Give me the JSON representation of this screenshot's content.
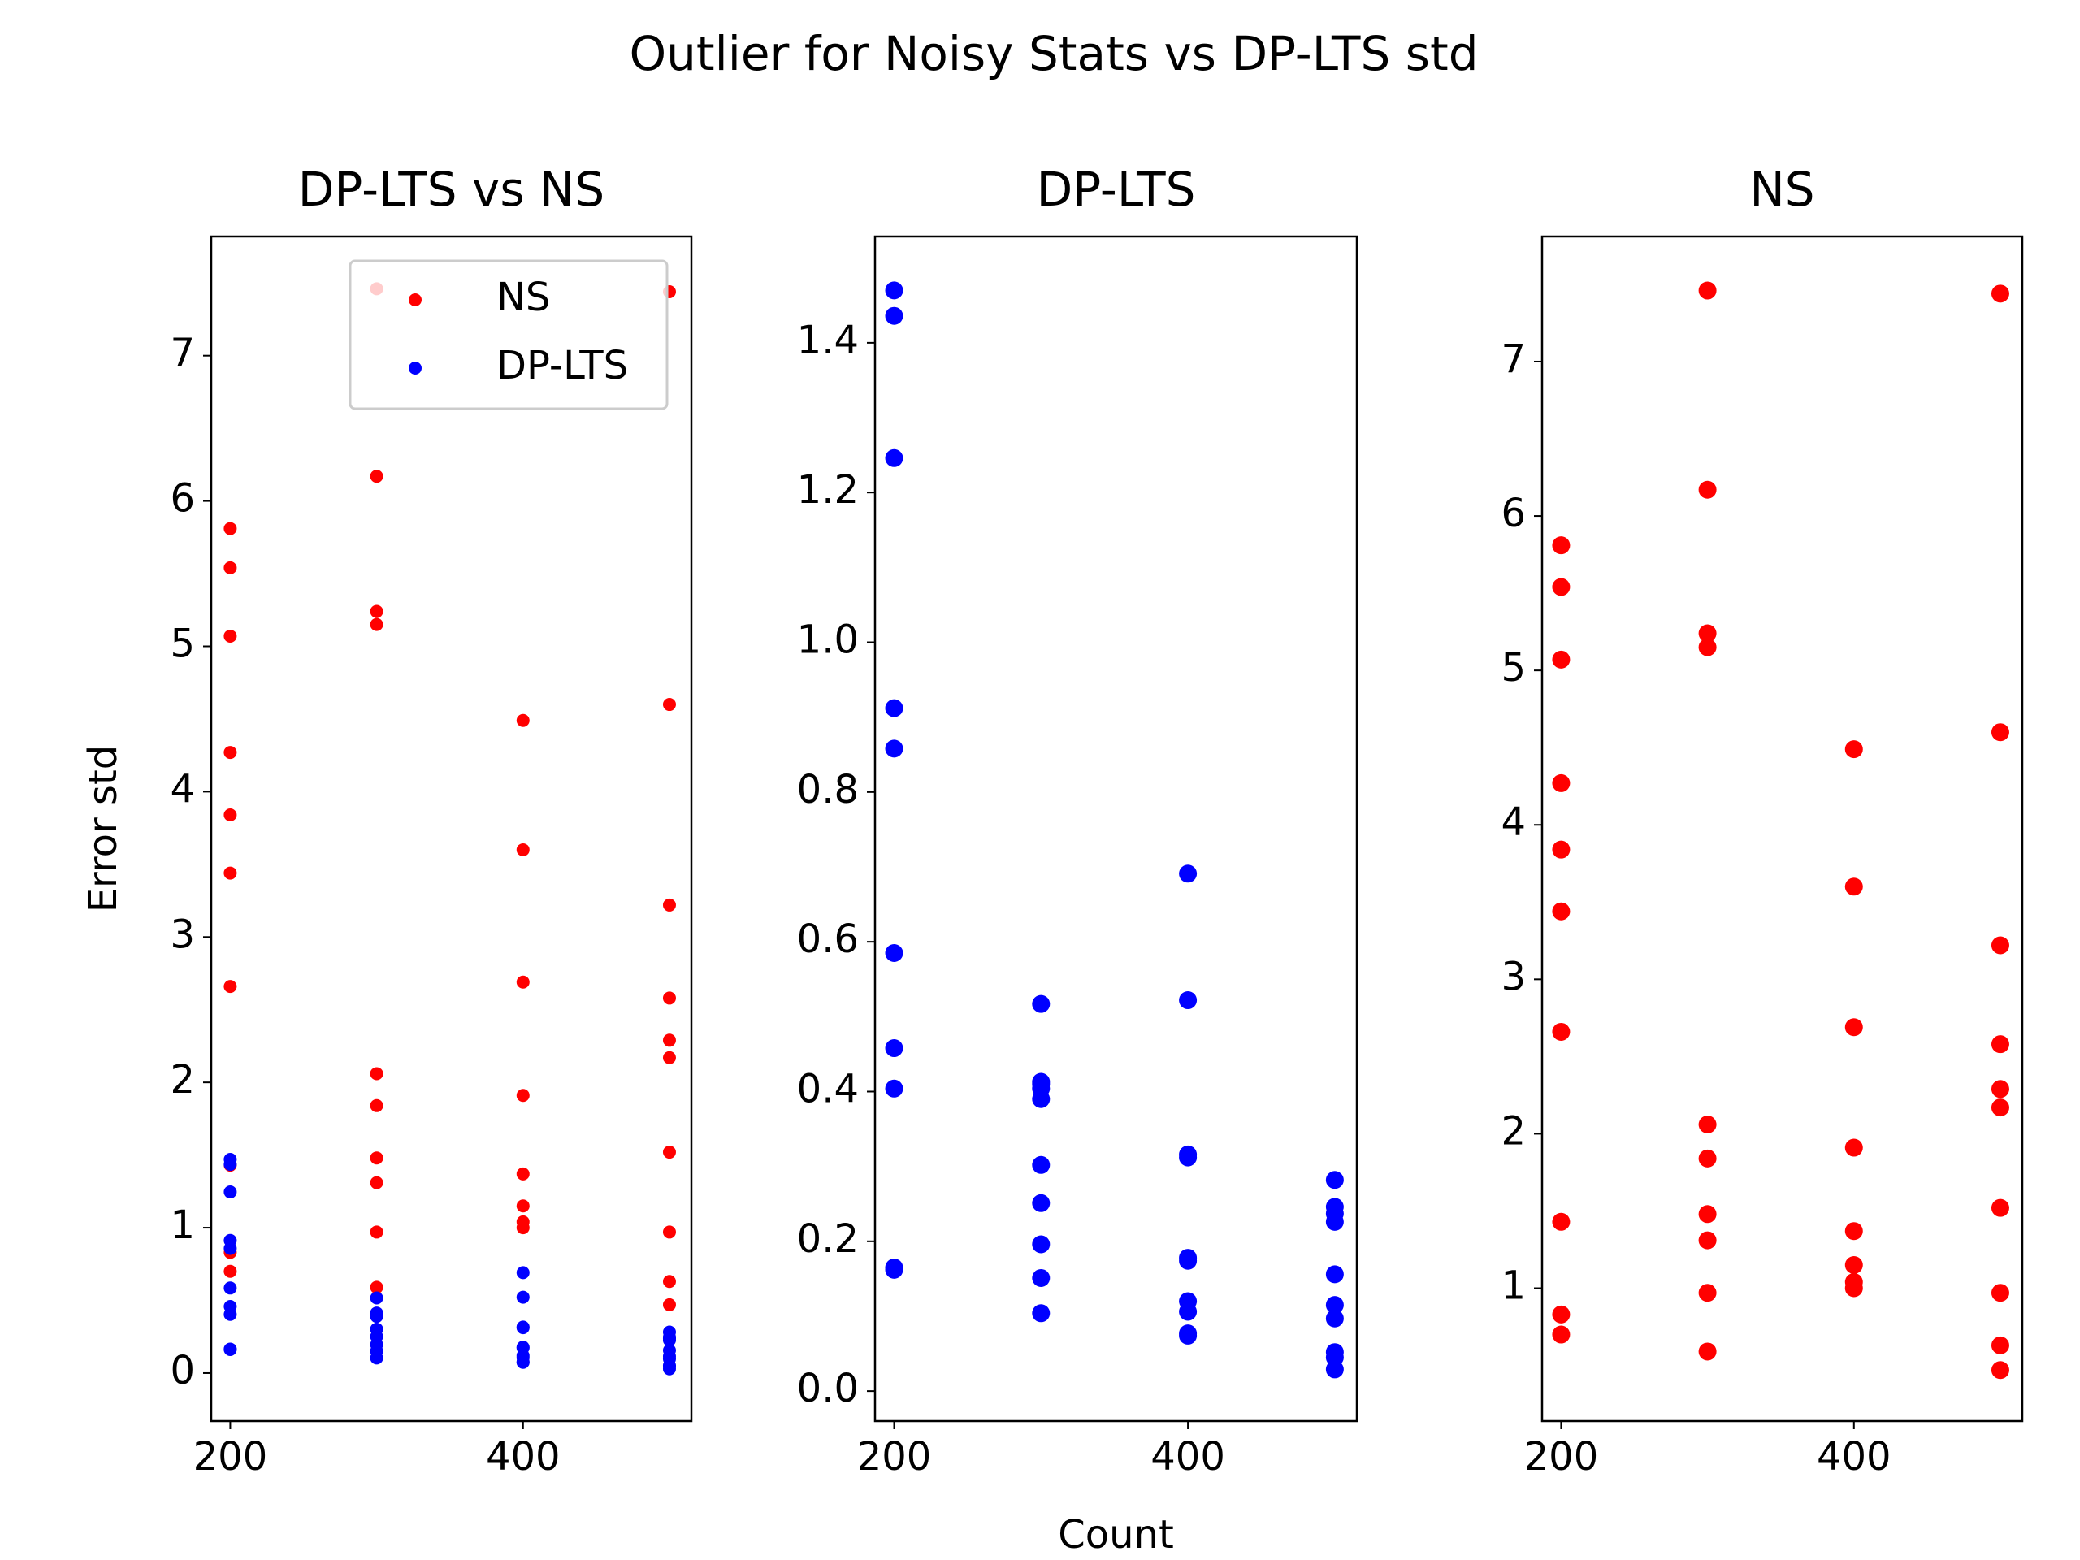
{
  "title": "Outlier for Noisy Stats vs DP-LTS std",
  "chart_data": [
    {
      "type": "scatter",
      "title": "DP-LTS vs NS",
      "ylabel": "Error std",
      "xlim": [
        187,
        515
      ],
      "xticks": [
        200,
        400
      ],
      "ylim": [
        -0.33,
        7.82
      ],
      "yticks": [
        0,
        1,
        2,
        3,
        4,
        5,
        6,
        7
      ],
      "legend": "upper right",
      "series": [
        {
          "name": "NS",
          "color": "#ff0000",
          "x": [
            200,
            200,
            200,
            200,
            200,
            200,
            200,
            200,
            200,
            200,
            300,
            300,
            300,
            300,
            300,
            300,
            300,
            300,
            300,
            300,
            400,
            400,
            400,
            400,
            400,
            400,
            400,
            400,
            500,
            500,
            500,
            500,
            500,
            500,
            500,
            500,
            500,
            500
          ],
          "values": [
            5.81,
            5.54,
            5.07,
            4.27,
            3.84,
            3.44,
            2.66,
            1.43,
            0.83,
            0.7,
            7.46,
            6.17,
            5.24,
            5.15,
            2.06,
            1.84,
            1.48,
            1.31,
            0.97,
            0.59,
            4.49,
            3.6,
            2.69,
            1.91,
            1.37,
            1.15,
            1.04,
            1.0,
            7.44,
            4.6,
            3.22,
            2.58,
            2.29,
            2.17,
            1.52,
            0.97,
            0.63,
            0.47
          ]
        },
        {
          "name": "DP-LTS",
          "color": "#0000ff",
          "x": [
            200,
            200,
            200,
            200,
            200,
            200,
            200,
            200,
            200,
            200,
            300,
            300,
            300,
            300,
            300,
            300,
            300,
            300,
            300,
            300,
            400,
            400,
            400,
            400,
            400,
            400,
            400,
            400,
            400,
            400,
            500,
            500,
            500,
            500,
            500,
            500,
            500,
            500,
            500,
            500
          ],
          "values": [
            1.47,
            1.436,
            1.246,
            0.912,
            0.858,
            0.585,
            0.458,
            0.404,
            0.165,
            0.162,
            0.517,
            0.413,
            0.41,
            0.404,
            0.39,
            0.302,
            0.251,
            0.196,
            0.151,
            0.104,
            0.691,
            0.522,
            0.316,
            0.312,
            0.178,
            0.174,
            0.12,
            0.106,
            0.077,
            0.074,
            0.282,
            0.246,
            0.237,
            0.226,
            0.156,
            0.115,
            0.097,
            0.052,
            0.045,
            0.029
          ]
        }
      ]
    },
    {
      "type": "scatter",
      "title": "DP-LTS",
      "xlabel": "Count",
      "xlim": [
        187,
        515
      ],
      "xticks": [
        200,
        400
      ],
      "ylim": [
        -0.04,
        1.542
      ],
      "yticks": [
        {
          "value": 0,
          "label": "0.0"
        },
        0.2,
        0.4,
        0.6,
        0.8,
        {
          "value": 1,
          "label": "1.0"
        },
        1.2,
        1.4
      ],
      "series": [
        {
          "name": "DP-LTS",
          "color": "#0000ff",
          "x": [
            200,
            200,
            200,
            200,
            200,
            200,
            200,
            200,
            200,
            200,
            300,
            300,
            300,
            300,
            300,
            300,
            300,
            300,
            300,
            300,
            400,
            400,
            400,
            400,
            400,
            400,
            400,
            400,
            400,
            400,
            500,
            500,
            500,
            500,
            500,
            500,
            500,
            500,
            500,
            500
          ],
          "values": [
            1.47,
            1.436,
            1.246,
            0.912,
            0.858,
            0.585,
            0.458,
            0.404,
            0.165,
            0.162,
            0.517,
            0.413,
            0.41,
            0.404,
            0.39,
            0.302,
            0.251,
            0.196,
            0.151,
            0.104,
            0.691,
            0.522,
            0.316,
            0.312,
            0.178,
            0.174,
            0.12,
            0.106,
            0.077,
            0.074,
            0.282,
            0.246,
            0.237,
            0.226,
            0.156,
            0.115,
            0.097,
            0.052,
            0.045,
            0.029
          ]
        }
      ]
    },
    {
      "type": "scatter",
      "title": "NS",
      "xlim": [
        187,
        515
      ],
      "xticks": [
        200,
        400
      ],
      "ylim": [
        0.14,
        7.81
      ],
      "yticks": [
        1,
        2,
        3,
        4,
        5,
        6,
        7
      ],
      "series": [
        {
          "name": "NS",
          "color": "#ff0000",
          "x": [
            200,
            200,
            200,
            200,
            200,
            200,
            200,
            200,
            200,
            200,
            300,
            300,
            300,
            300,
            300,
            300,
            300,
            300,
            300,
            300,
            400,
            400,
            400,
            400,
            400,
            400,
            400,
            400,
            500,
            500,
            500,
            500,
            500,
            500,
            500,
            500,
            500,
            500
          ],
          "values": [
            5.81,
            5.54,
            5.07,
            4.27,
            3.84,
            3.44,
            2.66,
            1.43,
            0.83,
            0.7,
            7.46,
            6.17,
            5.24,
            5.15,
            2.06,
            1.84,
            1.48,
            1.31,
            0.97,
            0.59,
            4.49,
            3.6,
            2.69,
            1.91,
            1.37,
            1.15,
            1.04,
            1.0,
            7.44,
            4.6,
            3.22,
            2.58,
            2.29,
            2.17,
            1.52,
            0.97,
            0.63,
            0.47
          ]
        }
      ]
    }
  ]
}
